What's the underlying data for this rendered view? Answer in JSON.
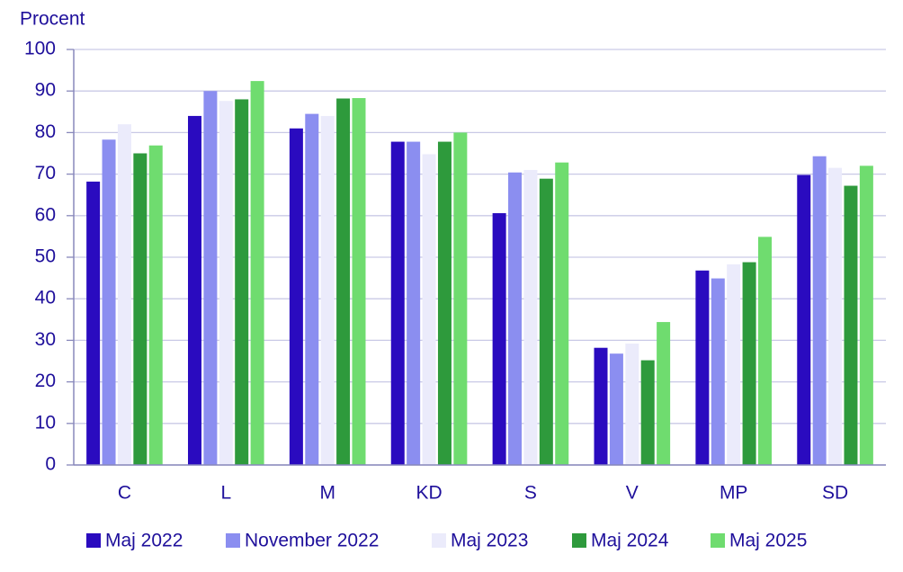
{
  "chart_data": {
    "type": "bar",
    "y_label": "Procent",
    "categories": [
      "C",
      "L",
      "M",
      "KD",
      "S",
      "V",
      "MP",
      "SD"
    ],
    "series": [
      {
        "name": "Maj 2022",
        "color": "#2a0bbf",
        "values": [
          68.2,
          84,
          81,
          77.8,
          60.6,
          28.2,
          46.8,
          69.8
        ]
      },
      {
        "name": "November 2022",
        "color": "#8b8ef0",
        "values": [
          78.3,
          90,
          84.5,
          77.8,
          70.4,
          26.8,
          44.9,
          74.3
        ]
      },
      {
        "name": "Maj 2023",
        "color": "#ebebfb",
        "values": [
          82,
          87.6,
          84,
          74.8,
          71,
          29.2,
          48.3,
          71.5
        ]
      },
      {
        "name": "Maj 2024",
        "color": "#2e9a3c",
        "values": [
          75,
          88,
          88.2,
          77.8,
          68.9,
          25.2,
          48.8,
          67.2
        ]
      },
      {
        "name": "Maj 2025",
        "color": "#6fdc6f",
        "values": [
          76.9,
          92.4,
          88.3,
          80,
          72.8,
          34.4,
          54.9,
          72
        ]
      }
    ],
    "ylim": [
      0,
      100
    ],
    "yticks": [
      0,
      10,
      20,
      30,
      40,
      50,
      60,
      70,
      80,
      90,
      100
    ],
    "grid": true
  }
}
